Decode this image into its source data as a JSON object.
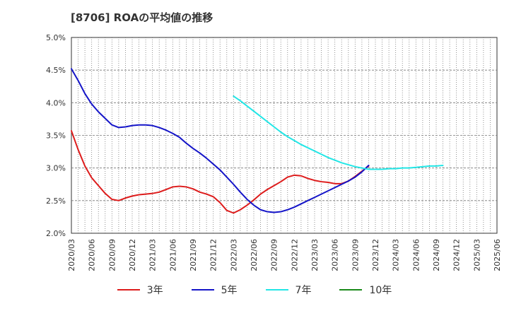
{
  "chart_data": {
    "type": "line",
    "title": "[8706]  ROAの平均値の推移",
    "y_ticks": [
      "5.0%",
      "4.5%",
      "4.0%",
      "3.5%",
      "3.0%",
      "2.5%",
      "2.0%"
    ],
    "ylim": [
      2.0,
      5.0
    ],
    "x_ticks": [
      "2020/03",
      "2020/06",
      "2020/09",
      "2020/12",
      "2021/03",
      "2021/06",
      "2021/09",
      "2021/12",
      "2022/03",
      "2022/06",
      "2022/09",
      "2022/12",
      "2023/03",
      "2023/06",
      "2023/09",
      "2023/12",
      "2024/03",
      "2024/06",
      "2024/09",
      "2024/12",
      "2025/03",
      "2025/06"
    ],
    "grid": true,
    "legend_position": "bottom",
    "series": [
      {
        "name": "3年",
        "color": "#dd1c1c",
        "start_index": 0,
        "values": [
          3.57,
          3.28,
          3.03,
          2.85,
          2.73,
          2.61,
          2.52,
          2.5,
          2.54,
          2.57,
          2.59,
          2.6,
          2.61,
          2.63,
          2.67,
          2.71,
          2.72,
          2.71,
          2.68,
          2.63,
          2.6,
          2.56,
          2.47,
          2.35,
          2.31,
          2.36,
          2.43,
          2.51,
          2.6,
          2.67,
          2.73,
          2.79,
          2.86,
          2.89,
          2.88,
          2.84,
          2.81,
          2.79,
          2.78,
          2.76,
          2.76,
          2.8,
          2.87,
          2.95,
          3.03
        ]
      },
      {
        "name": "5年",
        "color": "#1515c8",
        "start_index": 0,
        "values": [
          4.52,
          4.34,
          4.14,
          3.98,
          3.86,
          3.76,
          3.66,
          3.62,
          3.63,
          3.65,
          3.66,
          3.66,
          3.65,
          3.62,
          3.58,
          3.53,
          3.47,
          3.38,
          3.3,
          3.23,
          3.15,
          3.06,
          2.97,
          2.86,
          2.75,
          2.63,
          2.52,
          2.43,
          2.36,
          2.33,
          2.32,
          2.33,
          2.36,
          2.4,
          2.45,
          2.5,
          2.55,
          2.6,
          2.65,
          2.7,
          2.75,
          2.8,
          2.86,
          2.94,
          3.04
        ]
      },
      {
        "name": "7年",
        "color": "#22e6e6",
        "start_index": 24,
        "values": [
          4.1,
          4.03,
          3.95,
          3.87,
          3.79,
          3.71,
          3.63,
          3.55,
          3.48,
          3.42,
          3.36,
          3.31,
          3.26,
          3.21,
          3.16,
          3.12,
          3.08,
          3.05,
          3.02,
          3.0,
          2.98,
          2.98,
          2.98,
          2.99,
          2.99,
          3.0,
          3.0,
          3.01,
          3.02,
          3.03,
          3.03,
          3.04
        ]
      },
      {
        "name": "10年",
        "color": "#1a8a1a",
        "start_index": 0,
        "values": []
      }
    ]
  }
}
